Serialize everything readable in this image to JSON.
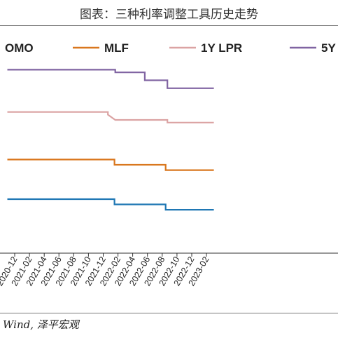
{
  "title": "图表：三种利率调整工具历史走势",
  "source": "Wind, 泽平宏观",
  "colors": {
    "omo": "#1f77b4",
    "mlf": "#d9771e",
    "lpr1y": "#dba3a3",
    "lpr5y": "#8064a2",
    "axis": "#333333"
  },
  "chart_data": {
    "type": "line",
    "x_tick_labels": [
      "2020-12",
      "2021-02",
      "2021-04",
      "2021-06",
      "2021-08",
      "2021-10",
      "2021-12",
      "2022-02",
      "2022-04",
      "2022-06",
      "2022-08",
      "2022-10",
      "2022-12",
      "2023-02"
    ],
    "legend": {
      "position": "top",
      "entries": [
        "OMO",
        "MLF",
        "1Y LPR",
        "5Y"
      ]
    },
    "grid": false,
    "series": [
      {
        "name": "OMO",
        "color_key": "omo",
        "points": [
          [
            "2020-11",
            2.2
          ],
          [
            "2022-01-17",
            2.2
          ],
          [
            "2022-01-17",
            2.1
          ],
          [
            "2022-08-15",
            2.1
          ],
          [
            "2022-08-15",
            2.0
          ],
          [
            "2023-03",
            2.0
          ]
        ]
      },
      {
        "name": "MLF",
        "color_key": "mlf",
        "points": [
          [
            "2020-11",
            2.95
          ],
          [
            "2022-01-17",
            2.95
          ],
          [
            "2022-01-17",
            2.85
          ],
          [
            "2022-08-15",
            2.85
          ],
          [
            "2022-08-15",
            2.75
          ],
          [
            "2023-03",
            2.75
          ]
        ]
      },
      {
        "name": "1Y LPR",
        "color_key": "lpr1y",
        "points": [
          [
            "2020-11",
            3.85
          ],
          [
            "2021-12-20",
            3.85
          ],
          [
            "2021-12-20",
            3.8
          ],
          [
            "2022-01-20",
            3.7
          ],
          [
            "2022-08-22",
            3.7
          ],
          [
            "2022-08-22",
            3.65
          ],
          [
            "2023-03",
            3.65
          ]
        ]
      },
      {
        "name": "5Y",
        "color_key": "lpr5y",
        "points": [
          [
            "2020-11",
            4.65
          ],
          [
            "2022-01-20",
            4.65
          ],
          [
            "2022-01-20",
            4.6
          ],
          [
            "2022-05-20",
            4.6
          ],
          [
            "2022-05-20",
            4.45
          ],
          [
            "2022-08-22",
            4.45
          ],
          [
            "2022-08-22",
            4.3
          ],
          [
            "2023-03",
            4.3
          ]
        ]
      }
    ]
  }
}
